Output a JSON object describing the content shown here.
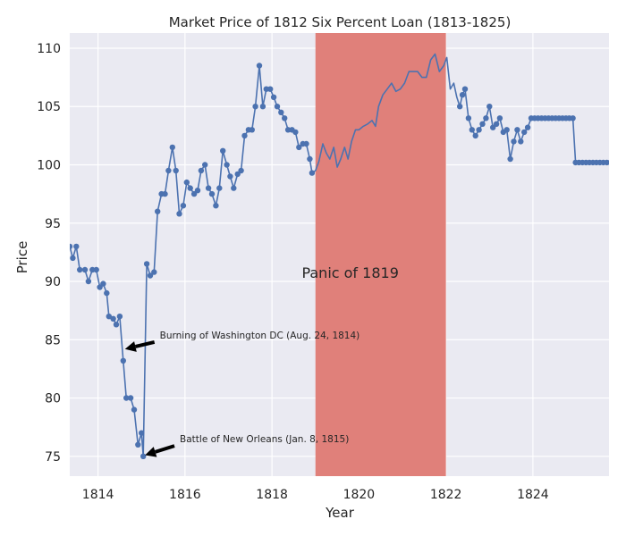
{
  "chart_data": {
    "type": "line",
    "title": "Market Price of 1812 Six Percent Loan (1813-1825)",
    "xlabel": "Year",
    "ylabel": "Price",
    "xlim": [
      1813.35,
      1825.75
    ],
    "ylim": [
      73.3,
      111.3
    ],
    "x_ticks": [
      1814,
      1816,
      1818,
      1820,
      1822,
      1824
    ],
    "y_ticks": [
      75,
      80,
      85,
      90,
      95,
      100,
      105,
      110
    ],
    "grid": true,
    "colors": {
      "line": "#4c72b0",
      "background": "#eaeaf2",
      "panic": "#e0807a",
      "grid": "#ffffff"
    },
    "series": [
      {
        "style": "line-with-markers",
        "points": [
          [
            1813.35,
            93.0
          ],
          [
            1813.42,
            92.0
          ],
          [
            1813.5,
            93.0
          ],
          [
            1813.58,
            91.0
          ],
          [
            1813.7,
            91.0
          ],
          [
            1813.78,
            90.0
          ],
          [
            1813.87,
            91.0
          ],
          [
            1813.96,
            91.0
          ],
          [
            1814.04,
            89.5
          ],
          [
            1814.12,
            89.8
          ],
          [
            1814.2,
            89.0
          ],
          [
            1814.25,
            87.0
          ],
          [
            1814.35,
            86.8
          ],
          [
            1814.42,
            86.3
          ],
          [
            1814.5,
            87.0
          ],
          [
            1814.58,
            83.2
          ],
          [
            1814.65,
            80.0
          ],
          [
            1814.75,
            80.0
          ],
          [
            1814.83,
            79.0
          ],
          [
            1814.92,
            76.0
          ],
          [
            1815.0,
            77.0
          ],
          [
            1815.04,
            75.0
          ],
          [
            1815.12,
            91.5
          ],
          [
            1815.2,
            90.5
          ],
          [
            1815.29,
            90.8
          ],
          [
            1815.37,
            96.0
          ],
          [
            1815.46,
            97.5
          ],
          [
            1815.54,
            97.5
          ],
          [
            1815.62,
            99.5
          ],
          [
            1815.71,
            101.5
          ],
          [
            1815.79,
            99.5
          ],
          [
            1815.87,
            95.8
          ],
          [
            1815.96,
            96.5
          ],
          [
            1816.04,
            98.5
          ],
          [
            1816.12,
            98.0
          ],
          [
            1816.21,
            97.5
          ],
          [
            1816.29,
            97.8
          ],
          [
            1816.37,
            99.5
          ],
          [
            1816.46,
            100.0
          ],
          [
            1816.54,
            98.0
          ],
          [
            1816.62,
            97.5
          ],
          [
            1816.71,
            96.5
          ],
          [
            1816.79,
            98.0
          ],
          [
            1816.87,
            101.2
          ],
          [
            1816.96,
            100.0
          ],
          [
            1817.04,
            99.0
          ],
          [
            1817.12,
            98.0
          ],
          [
            1817.21,
            99.2
          ],
          [
            1817.29,
            99.5
          ],
          [
            1817.37,
            102.5
          ],
          [
            1817.46,
            103.0
          ],
          [
            1817.54,
            103.0
          ],
          [
            1817.62,
            105.0
          ],
          [
            1817.71,
            108.5
          ],
          [
            1817.79,
            105.0
          ],
          [
            1817.87,
            106.5
          ],
          [
            1817.96,
            106.5
          ],
          [
            1818.04,
            105.8
          ],
          [
            1818.12,
            105.0
          ],
          [
            1818.21,
            104.5
          ],
          [
            1818.29,
            104.0
          ],
          [
            1818.37,
            103.0
          ],
          [
            1818.46,
            103.0
          ],
          [
            1818.54,
            102.8
          ],
          [
            1818.62,
            101.5
          ],
          [
            1818.71,
            101.8
          ],
          [
            1818.79,
            101.8
          ],
          [
            1818.87,
            100.5
          ],
          [
            1818.92,
            99.3
          ]
        ]
      },
      {
        "style": "line",
        "points": [
          [
            1818.92,
            99.3
          ],
          [
            1819.0,
            99.5
          ],
          [
            1819.08,
            100.3
          ],
          [
            1819.17,
            101.8
          ],
          [
            1819.25,
            101.0
          ],
          [
            1819.33,
            100.5
          ],
          [
            1819.42,
            101.5
          ],
          [
            1819.5,
            99.8
          ],
          [
            1819.58,
            100.5
          ],
          [
            1819.67,
            101.5
          ],
          [
            1819.75,
            100.5
          ],
          [
            1819.83,
            102.0
          ],
          [
            1819.92,
            103.0
          ],
          [
            1820.0,
            103.0
          ],
          [
            1820.1,
            103.3
          ],
          [
            1820.2,
            103.5
          ],
          [
            1820.3,
            103.8
          ],
          [
            1820.38,
            103.3
          ],
          [
            1820.45,
            105.0
          ],
          [
            1820.55,
            106.0
          ],
          [
            1820.65,
            106.5
          ],
          [
            1820.75,
            107.0
          ],
          [
            1820.85,
            106.3
          ],
          [
            1820.95,
            106.5
          ],
          [
            1821.05,
            107.0
          ],
          [
            1821.15,
            108.0
          ],
          [
            1821.25,
            108.0
          ],
          [
            1821.35,
            108.0
          ],
          [
            1821.45,
            107.5
          ],
          [
            1821.55,
            107.5
          ],
          [
            1821.65,
            109.0
          ],
          [
            1821.75,
            109.5
          ],
          [
            1821.85,
            108.0
          ],
          [
            1821.95,
            108.5
          ],
          [
            1822.02,
            109.2
          ],
          [
            1822.1,
            106.5
          ],
          [
            1822.18,
            107.0
          ],
          [
            1822.25,
            105.8
          ],
          [
            1822.32,
            105.0
          ]
        ]
      },
      {
        "style": "line-with-markers",
        "points": [
          [
            1822.32,
            105.0
          ],
          [
            1822.38,
            106.0
          ],
          [
            1822.44,
            106.5
          ],
          [
            1822.52,
            104.0
          ],
          [
            1822.6,
            103.0
          ],
          [
            1822.68,
            102.5
          ],
          [
            1822.76,
            103.0
          ],
          [
            1822.84,
            103.5
          ],
          [
            1822.92,
            104.0
          ],
          [
            1823.0,
            105.0
          ],
          [
            1823.08,
            103.2
          ],
          [
            1823.16,
            103.5
          ],
          [
            1823.24,
            104.0
          ],
          [
            1823.32,
            102.8
          ],
          [
            1823.4,
            103.0
          ],
          [
            1823.48,
            100.5
          ],
          [
            1823.56,
            102.0
          ],
          [
            1823.64,
            103.0
          ],
          [
            1823.72,
            102.0
          ],
          [
            1823.8,
            102.8
          ],
          [
            1823.88,
            103.2
          ],
          [
            1823.96,
            104.0
          ],
          [
            1824.04,
            104.0
          ],
          [
            1824.12,
            104.0
          ],
          [
            1824.2,
            104.0
          ],
          [
            1824.28,
            104.0
          ],
          [
            1824.36,
            104.0
          ],
          [
            1824.44,
            104.0
          ],
          [
            1824.52,
            104.0
          ],
          [
            1824.6,
            104.0
          ],
          [
            1824.68,
            104.0
          ],
          [
            1824.76,
            104.0
          ],
          [
            1824.84,
            104.0
          ],
          [
            1824.92,
            104.0
          ],
          [
            1824.98,
            100.2
          ],
          [
            1825.06,
            100.2
          ],
          [
            1825.14,
            100.2
          ],
          [
            1825.22,
            100.2
          ],
          [
            1825.3,
            100.2
          ],
          [
            1825.38,
            100.2
          ],
          [
            1825.46,
            100.2
          ],
          [
            1825.54,
            100.2
          ],
          [
            1825.62,
            100.2
          ],
          [
            1825.7,
            100.2
          ],
          [
            1825.78,
            100.2
          ],
          [
            1825.86,
            100.8
          ],
          [
            1825.94,
            100.0
          ],
          [
            1826.02,
            100.2
          ],
          [
            1826.1,
            100.8
          ],
          [
            1826.18,
            101.0
          ]
        ]
      }
    ],
    "shaded_regions": [
      {
        "x0": 1819.0,
        "x1": 1822.0,
        "label": "Panic of 1819",
        "label_x": 1819.8,
        "label_y": 90.3
      }
    ],
    "annotations": [
      {
        "text": "Burning of Washington DC (Aug. 24, 1814)",
        "xy": [
          1814.62,
          84.2
        ],
        "text_xy": [
          1815.42,
          85.1
        ]
      },
      {
        "text": "Battle of New Orleans (Jan. 8, 1815)",
        "xy": [
          1815.08,
          75.1
        ],
        "text_xy": [
          1815.88,
          76.2
        ]
      }
    ]
  }
}
